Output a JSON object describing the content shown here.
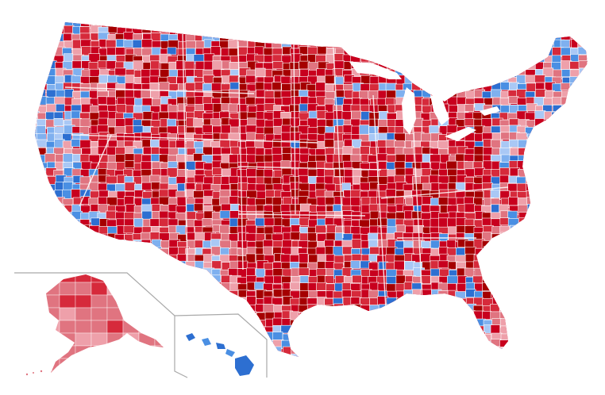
{
  "map": {
    "colors": {
      "background": "#ffffff",
      "inset_border": "#a9a9a9",
      "county_border": "#ffffff",
      "state_border": "#ffffff"
    },
    "legend_scale": [
      {
        "name": "republican-80-plus",
        "color": "#a50000"
      },
      {
        "name": "republican-70-80",
        "color": "#c8001e"
      },
      {
        "name": "republican-60-70",
        "color": "#d62a3b"
      },
      {
        "name": "republican-50-60",
        "color": "#e07480"
      },
      {
        "name": "republican-lean",
        "color": "#eea0aa"
      },
      {
        "name": "democrat-lean",
        "color": "#a9c8f5"
      },
      {
        "name": "democrat-50-60",
        "color": "#7fb0ef"
      },
      {
        "name": "democrat-60-70",
        "color": "#4a8fe3"
      },
      {
        "name": "democrat-70-plus",
        "color": "#2d6fd1"
      }
    ],
    "insets": [
      "alaska",
      "hawaii"
    ]
  }
}
